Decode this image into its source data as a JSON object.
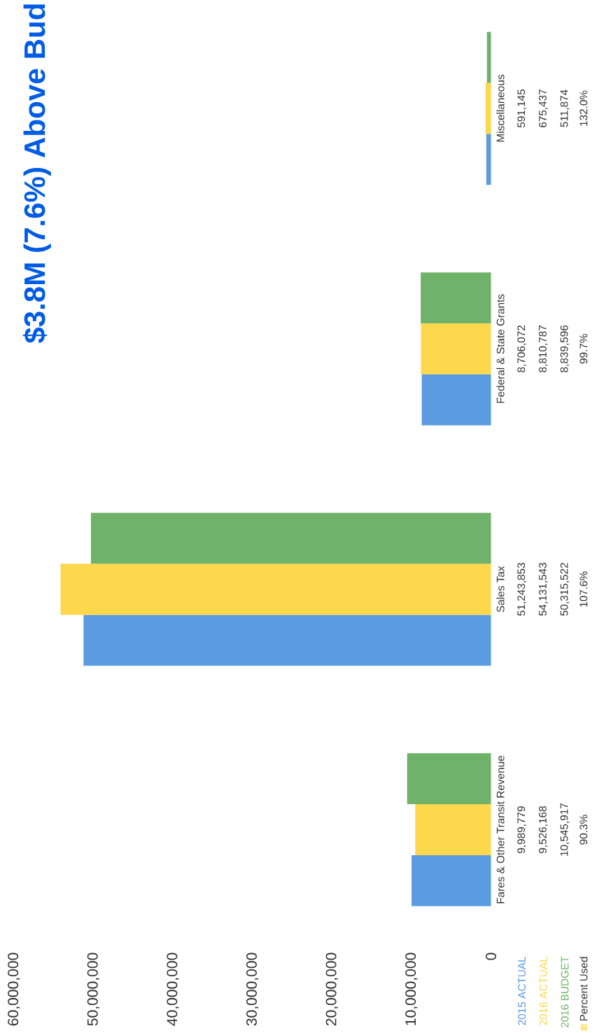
{
  "chart_data": {
    "type": "bar",
    "title": "$3.8M (7.6%) Above Bud",
    "orientation": "horizontal",
    "categories": [
      "Miscellaneous",
      "Federal & State Grants",
      "Sales Tax",
      "Fares & Other Transit Revenue"
    ],
    "series": [
      {
        "name": "2015 ACTUAL",
        "color": "#5b9bdf",
        "values": [
          591145,
          8706072,
          51243853,
          9989779
        ],
        "value_labels": [
          "591,145",
          "8,706,072",
          "51,243,853",
          "9,989,779"
        ]
      },
      {
        "name": "2016 ACTUAL",
        "color": "#fdd74c",
        "values": [
          675437,
          8810787,
          54131543,
          9526168
        ],
        "value_labels": [
          "675,437",
          "8,810,787",
          "54,131,543",
          "9,526,168"
        ]
      },
      {
        "name": "2016 BUDGET",
        "color": "#6fb26a",
        "values": [
          511874,
          8839596,
          50315522,
          10545917
        ],
        "value_labels": [
          "511,874",
          "8,839,596",
          "50,315,522",
          "10,545,917"
        ]
      }
    ],
    "annotations": [
      "Percent Used",
      "132.0%",
      "99.7%",
      "107.6%",
      "90.3%"
    ],
    "xlim": [
      60000000,
      0
    ],
    "xticks": [
      {
        "value": 60000000,
        "label": "60,000,000"
      },
      {
        "value": 50000000,
        "label": "50,000,000"
      },
      {
        "value": 40000000,
        "label": "40,000,000"
      },
      {
        "value": 30000000,
        "label": "30,000,000"
      },
      {
        "value": 20000000,
        "label": "20,000,000"
      },
      {
        "value": 10000000,
        "label": "10,000,000"
      },
      {
        "value": 0,
        "label": "0"
      }
    ],
    "tick_labels": "x",
    "legend": "bottom",
    "grid": false
  }
}
